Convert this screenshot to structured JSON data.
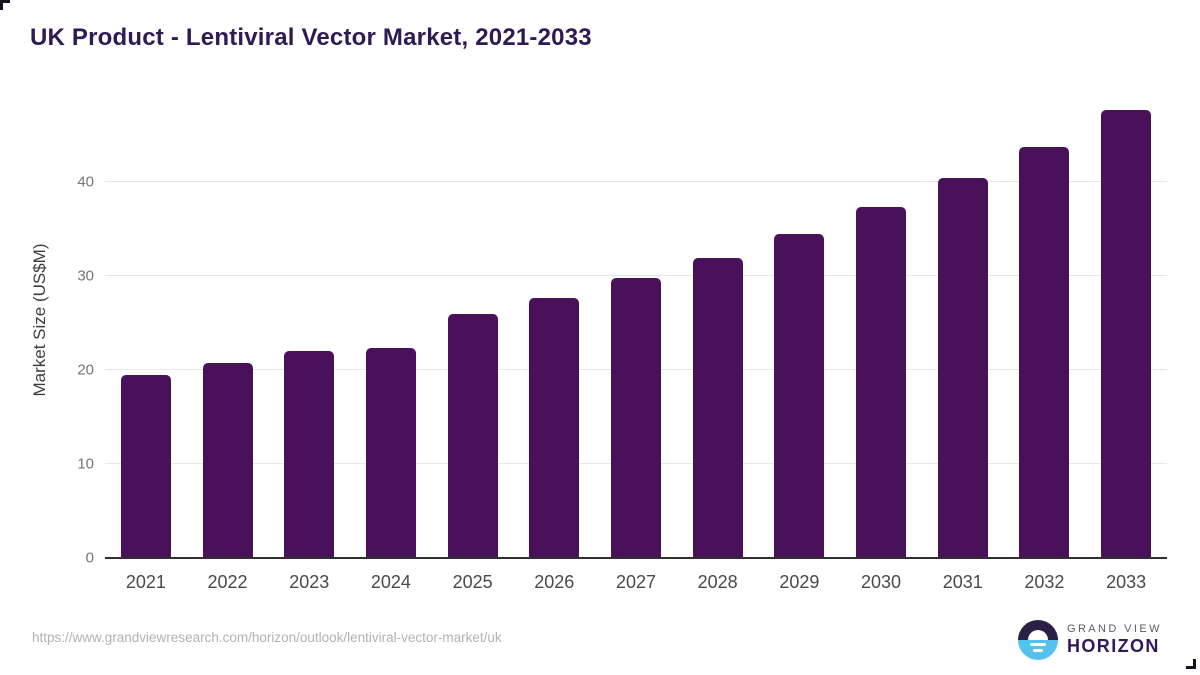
{
  "title": "UK Product - Lentiviral Vector Market, 2021-2033",
  "chart_data": {
    "type": "bar",
    "title": "UK Product - Lentiviral Vector Market, 2021-2033",
    "categories": [
      "2021",
      "2022",
      "2023",
      "2024",
      "2025",
      "2026",
      "2027",
      "2028",
      "2029",
      "2030",
      "2031",
      "2032",
      "2033"
    ],
    "values": [
      19.5,
      20.7,
      22.0,
      22.3,
      25.9,
      27.7,
      29.8,
      31.9,
      34.5,
      37.3,
      40.4,
      43.7,
      47.6
    ],
    "xlabel": "",
    "ylabel": "Market Size (US$M)",
    "ylim": [
      0,
      48.7
    ],
    "yticks": [
      0,
      10,
      20,
      30,
      40
    ],
    "grid": "horizontal",
    "legend": "none",
    "bar_color": "#48115a"
  },
  "footer": {
    "source_url": "https://www.grandviewresearch.com/horizon/outlook/lentiviral-vector-market/uk",
    "logo": {
      "line1": "GRAND VIEW",
      "line2": "HORIZON"
    }
  },
  "colors": {
    "title": "#2e1a54",
    "bar": "#48115a",
    "gridline": "#e7e7e7",
    "axis_line": "#2f2f2f",
    "y_tick_label": "#757575",
    "x_tick_label": "#4a4a4a",
    "url_text": "#b2b2b2",
    "logo_dark_half": "#2a2046",
    "logo_blue_half": "#56c0ee"
  }
}
